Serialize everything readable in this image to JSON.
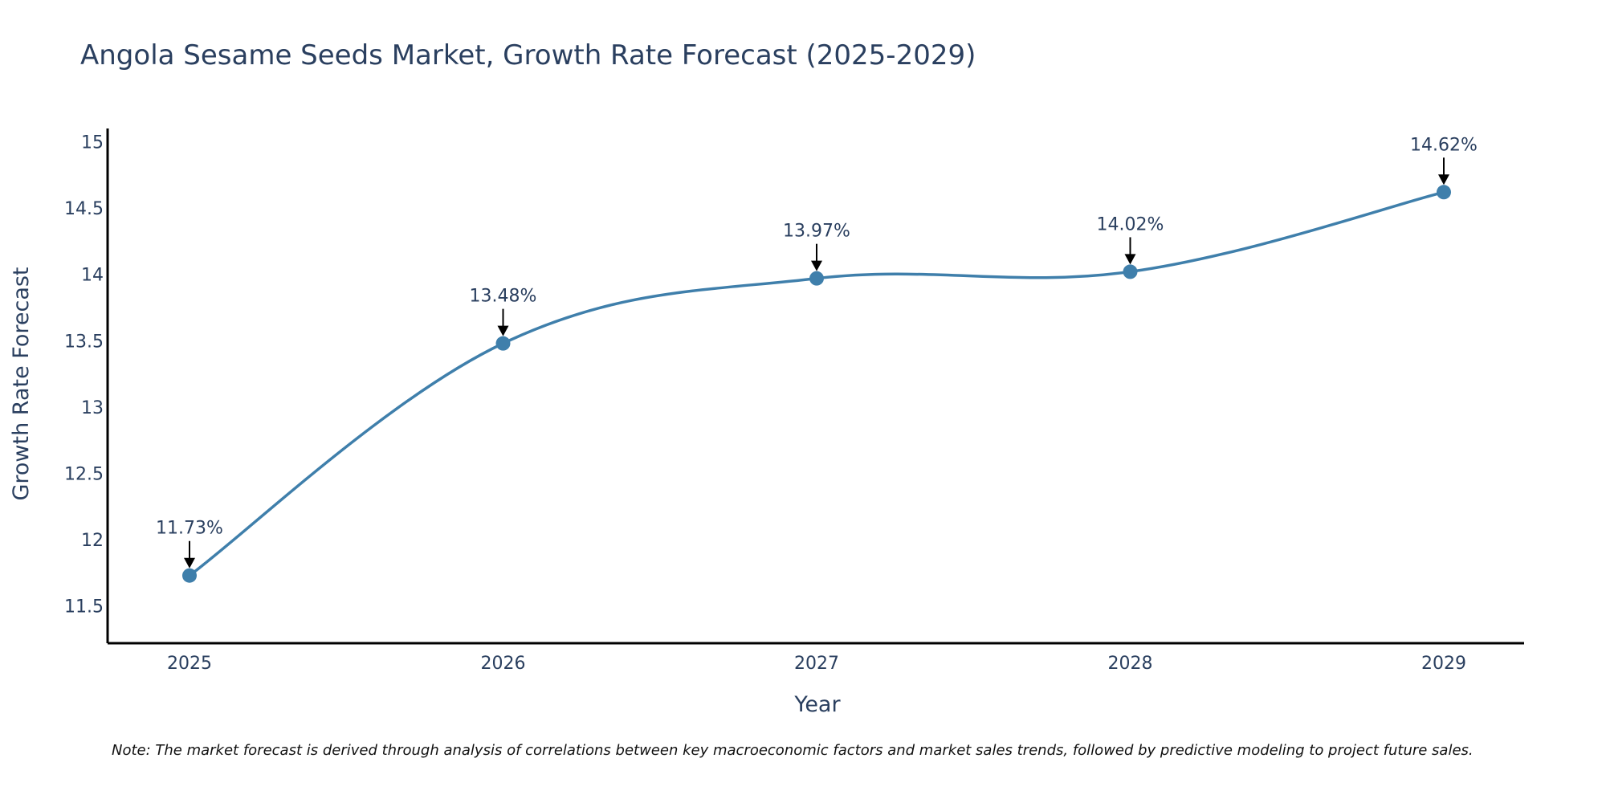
{
  "colors": {
    "line": "#3f7fab",
    "marker": "#3f7fab",
    "axis": "#000000",
    "text": "#2a3f5f",
    "annotation_arrow": "#000000"
  },
  "chart_data": {
    "type": "line",
    "title": "Angola Sesame Seeds Market, Growth Rate Forecast (2025-2029)",
    "xlabel": "Year",
    "ylabel": "Growth Rate Forecast",
    "categories": [
      "2025",
      "2026",
      "2027",
      "2028",
      "2029"
    ],
    "series": [
      {
        "name": "Growth Rate Forecast",
        "values": [
          11.73,
          13.48,
          13.97,
          14.02,
          14.62
        ]
      }
    ],
    "data_labels": [
      "11.73%",
      "13.48%",
      "13.97%",
      "14.02%",
      "14.62%"
    ],
    "yticks": [
      11.5,
      12,
      12.5,
      13,
      13.5,
      14,
      14.5,
      15
    ],
    "ytick_labels": [
      "11.5",
      "12",
      "12.5",
      "13",
      "13.5",
      "14",
      "14.5",
      "15"
    ],
    "ylim": [
      11.22,
      15.1
    ],
    "grid": false,
    "line_shape": "spline",
    "note": "Note: The market forecast is derived through analysis of correlations between key macroeconomic factors and market sales trends, followed by predictive modeling to project future sales."
  }
}
